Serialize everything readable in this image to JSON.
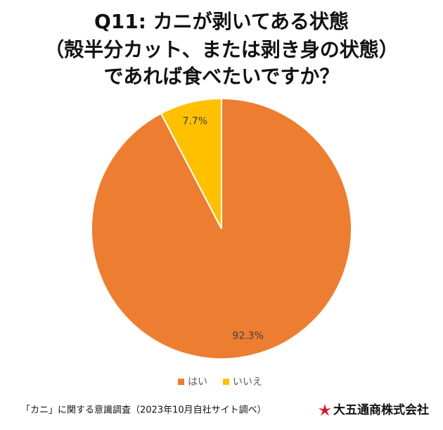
{
  "chart_data": {
    "type": "pie",
    "title_lines": [
      "Q11: カニが剥いてある状態",
      "（殻半分カット、または剥き身の状態）",
      "であれば食べたいですか？"
    ],
    "series": [
      {
        "name": "はい",
        "color": "#ED7D31",
        "values": [
          92.3
        ],
        "value_labels": [
          "92.3%"
        ]
      },
      {
        "name": "いいえ",
        "color": "#FFC000",
        "values": [
          7.7
        ],
        "value_labels": [
          "7.7%"
        ]
      }
    ],
    "legend": "bottom"
  },
  "footer": {
    "source": "「カニ」に関する意識調査（2023年10月自社サイト調べ）",
    "company": "大五通商株式会社"
  }
}
